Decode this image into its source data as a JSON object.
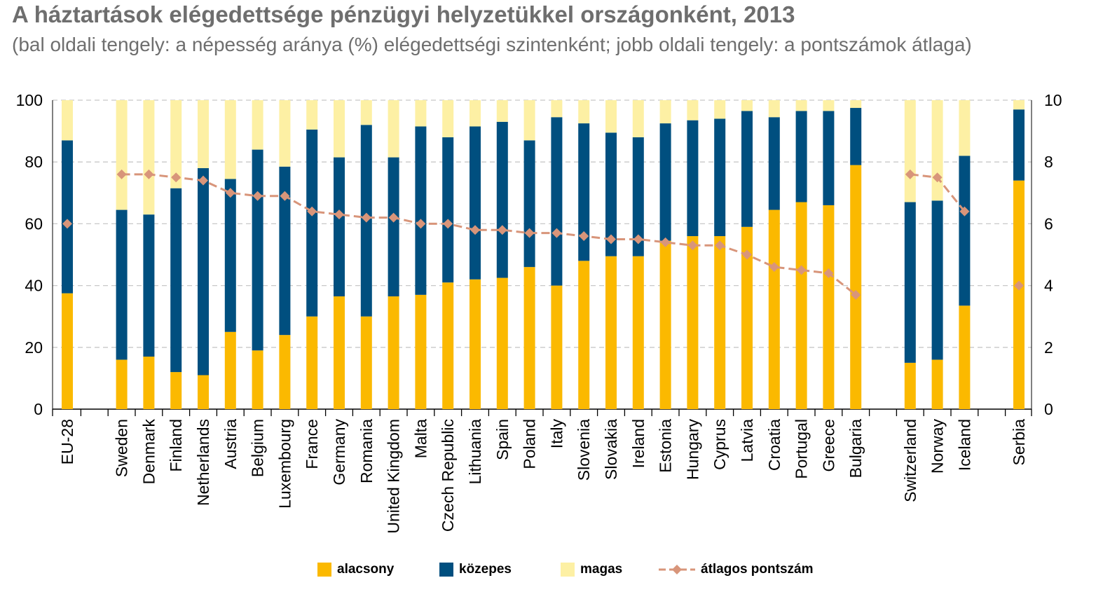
{
  "title": "A háztartások elégedettsége pénzügyi helyzetükkel országonként, 2013",
  "subtitle": "(bal oldali tengely: a népesség aránya (%) elégedettségi szintenként; jobb oldali tengely: a pontszámok átlaga)",
  "colors": {
    "alacsony": "#fbb900",
    "kozepes": "#004f7f",
    "magas": "#fdf0a4",
    "atlagos": "#d8957a",
    "grid": "#c8c8c8",
    "title": "#6e6e6e"
  },
  "legend": {
    "alacsony": "alacsony",
    "kozepes": "közepes",
    "magas": "magas",
    "atlagos": "átlagos pontszám"
  },
  "chart_data": {
    "type": "bar",
    "stacked": true,
    "left_axis": {
      "ylim": [
        0,
        100
      ],
      "ticks": [
        "0",
        "20",
        "40",
        "60",
        "80",
        "100"
      ]
    },
    "right_axis": {
      "ylim": [
        0,
        10
      ],
      "ticks": [
        "0",
        "2",
        "4",
        "6",
        "8",
        "10"
      ]
    },
    "grid": true,
    "legend_position": "bottom",
    "categories": [
      "EU-28",
      "Sweden",
      "Denmark",
      "Finland",
      "Netherlands",
      "Austria",
      "Belgium",
      "Luxembourg",
      "France",
      "Germany",
      "Romania",
      "United Kingdom",
      "Malta",
      "Czech Republic",
      "Lithuania",
      "Spain",
      "Poland",
      "Italy",
      "Slovenia",
      "Slovakia",
      "Ireland",
      "Estonia",
      "Hungary",
      "Cyprus",
      "Latvia",
      "Croatia",
      "Portugal",
      "Greece",
      "Bulgaria",
      "Switzerland",
      "Norway",
      "Iceland",
      "Serbia"
    ],
    "groups": [
      [
        0
      ],
      [
        1,
        2,
        3,
        4,
        5,
        6,
        7,
        8,
        9,
        10,
        11,
        12,
        13,
        14,
        15,
        16,
        17,
        18,
        19,
        20,
        21,
        22,
        23,
        24,
        25,
        26,
        27,
        28
      ],
      [
        29,
        30,
        31
      ],
      [
        32
      ]
    ],
    "series": [
      {
        "name": "alacsony",
        "values": [
          37.5,
          16,
          17,
          12,
          11,
          25,
          19,
          24,
          30,
          36.5,
          30,
          36.5,
          37,
          41,
          42,
          42.5,
          46,
          40,
          48,
          49.5,
          49.5,
          54.5,
          56,
          56,
          59,
          64.5,
          67,
          66,
          79,
          15,
          16,
          33.5,
          74
        ]
      },
      {
        "name": "közepes",
        "values": [
          49.5,
          48.5,
          46,
          59.5,
          67,
          49.5,
          65,
          54.5,
          60.5,
          45,
          62,
          45,
          54.5,
          47,
          49.5,
          50.5,
          41,
          54.5,
          44.5,
          40,
          38.5,
          38,
          37.5,
          38,
          37.5,
          30,
          29.5,
          30.5,
          18.5,
          52,
          51.5,
          48.5,
          23
        ]
      },
      {
        "name": "magas",
        "values": [
          13,
          35.5,
          37,
          28.5,
          22,
          25.5,
          16,
          21.5,
          9.5,
          18.5,
          8,
          18.5,
          8.5,
          12,
          8.5,
          7,
          13,
          5.5,
          7.5,
          10.5,
          12,
          7.5,
          6.5,
          6,
          3.5,
          5.5,
          3.5,
          3.5,
          2.5,
          33,
          32.5,
          18,
          3
        ]
      },
      {
        "name": "átlagos pontszám",
        "axis": "right",
        "values": [
          6.0,
          7.6,
          7.6,
          7.5,
          7.4,
          7.0,
          6.9,
          6.9,
          6.4,
          6.3,
          6.2,
          6.2,
          6.0,
          6.0,
          5.8,
          5.8,
          5.7,
          5.7,
          5.6,
          5.5,
          5.5,
          5.4,
          5.3,
          5.3,
          5.0,
          4.6,
          4.5,
          4.4,
          3.7,
          7.6,
          7.5,
          6.4,
          4.0
        ]
      }
    ]
  }
}
